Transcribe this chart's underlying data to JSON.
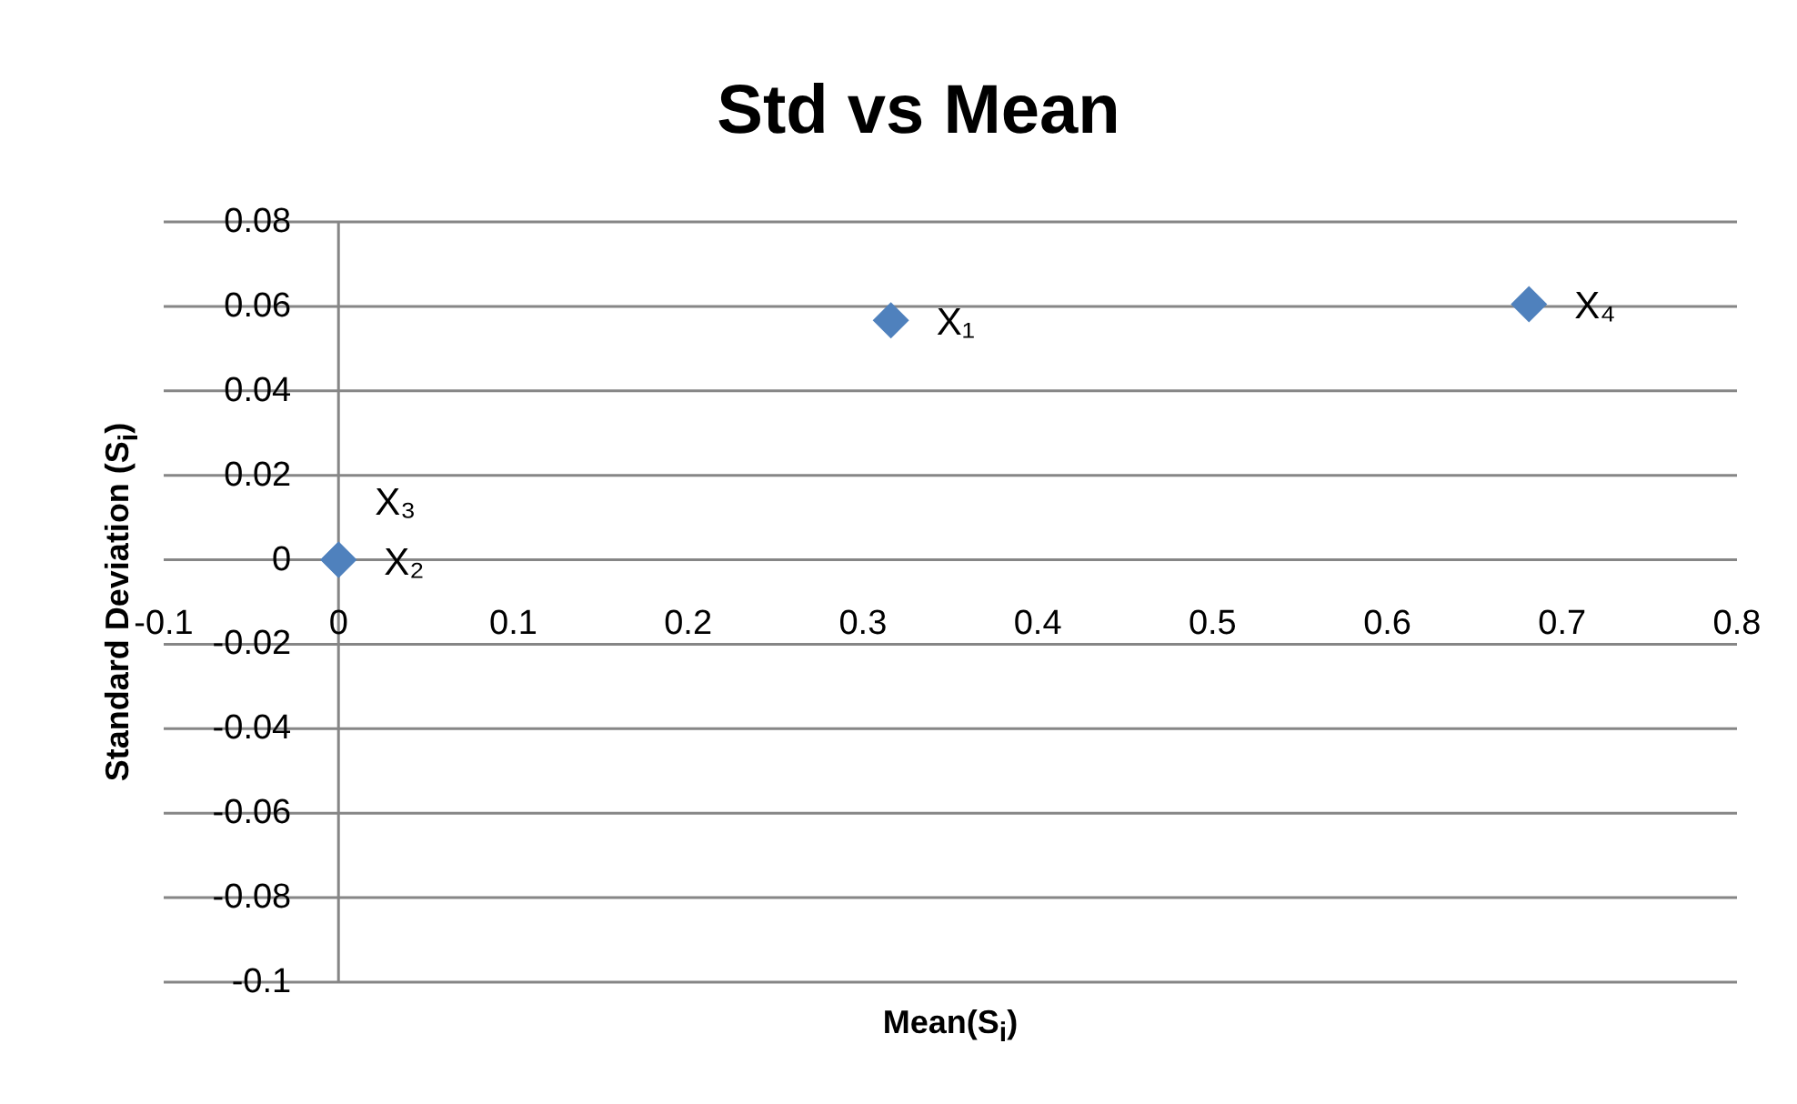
{
  "chart_data": {
    "type": "scatter",
    "title": "Std vs Mean",
    "xlabel": "Mean(S$_{i}$)",
    "ylabel": "Standard Deviation (S$_{i}$)",
    "series": [
      {
        "name": "X₁",
        "color": "#4f81bd",
        "x": [
          0.316
        ],
        "values": [
          0.0567
        ]
      },
      {
        "name": "X₂",
        "color": "#4f81bd",
        "x": [
          0
        ],
        "values": [
          0
        ]
      },
      {
        "name": "X₃",
        "color": "#4f81bd",
        "x": [
          0
        ],
        "values": [
          0
        ]
      },
      {
        "name": "X₄",
        "color": "#4f81bd",
        "x": [
          0.681
        ],
        "values": [
          0.0605
        ]
      }
    ],
    "xlim": [
      -0.1,
      0.8
    ],
    "xticks": [
      -0.1,
      0,
      0.1,
      0.2,
      0.3,
      0.4,
      0.5,
      0.6,
      0.7,
      0.8
    ],
    "ylim": [
      -0.1,
      0.08
    ],
    "yticks": [
      -0.1,
      -0.08,
      -0.06,
      -0.04,
      -0.02,
      0,
      0.02,
      0.04,
      0.06,
      0.08
    ],
    "grid": "y",
    "marker": "diamond"
  }
}
